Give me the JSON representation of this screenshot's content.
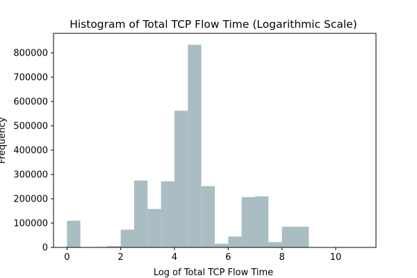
{
  "chart_data": {
    "type": "bar",
    "title": "Histogram of Total TCP Flow Time (Logarithmic Scale)",
    "xlabel": "Log of Total TCP Flow Time",
    "ylabel": "Frequency",
    "xlim": [
      -0.5,
      11.5
    ],
    "ylim": [
      0,
      880000
    ],
    "x_ticks": [
      0,
      2,
      4,
      6,
      8,
      10
    ],
    "y_ticks": [
      0,
      100000,
      200000,
      300000,
      400000,
      500000,
      600000,
      700000,
      800000
    ],
    "bar_color": "#aabdc2",
    "bins": [
      {
        "start": 0.0,
        "end": 0.5,
        "value": 110000
      },
      {
        "start": 0.5,
        "end": 1.0,
        "value": 0
      },
      {
        "start": 1.0,
        "end": 1.5,
        "value": 2000
      },
      {
        "start": 1.5,
        "end": 2.0,
        "value": 5000
      },
      {
        "start": 2.0,
        "end": 2.5,
        "value": 73000
      },
      {
        "start": 2.5,
        "end": 3.0,
        "value": 275000
      },
      {
        "start": 3.0,
        "end": 3.5,
        "value": 158000
      },
      {
        "start": 3.5,
        "end": 4.0,
        "value": 272000
      },
      {
        "start": 4.0,
        "end": 4.5,
        "value": 562000
      },
      {
        "start": 4.5,
        "end": 5.0,
        "value": 833000
      },
      {
        "start": 5.0,
        "end": 5.5,
        "value": 252000
      },
      {
        "start": 5.5,
        "end": 6.0,
        "value": 15000
      },
      {
        "start": 6.0,
        "end": 6.5,
        "value": 45000
      },
      {
        "start": 6.5,
        "end": 7.0,
        "value": 207000
      },
      {
        "start": 7.0,
        "end": 7.5,
        "value": 210000
      },
      {
        "start": 7.5,
        "end": 8.0,
        "value": 22000
      },
      {
        "start": 8.0,
        "end": 8.5,
        "value": 85000
      },
      {
        "start": 8.5,
        "end": 9.0,
        "value": 85000
      },
      {
        "start": 9.0,
        "end": 9.5,
        "value": 0
      },
      {
        "start": 9.5,
        "end": 10.0,
        "value": 0
      },
      {
        "start": 10.0,
        "end": 10.5,
        "value": 1000
      },
      {
        "start": 10.5,
        "end": 11.0,
        "value": 1000
      }
    ]
  }
}
